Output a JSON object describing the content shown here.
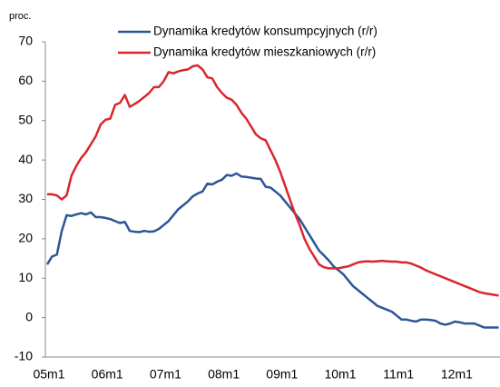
{
  "chart_data": {
    "type": "line",
    "y_label": "proc.",
    "categories": [
      "05m1",
      null,
      null,
      null,
      null,
      null,
      null,
      null,
      null,
      null,
      null,
      null,
      "06m1",
      null,
      null,
      null,
      null,
      null,
      null,
      null,
      null,
      null,
      null,
      null,
      "07m1",
      null,
      null,
      null,
      null,
      null,
      null,
      null,
      null,
      null,
      null,
      null,
      "08m1",
      null,
      null,
      null,
      null,
      null,
      null,
      null,
      null,
      null,
      null,
      null,
      "09m1",
      null,
      null,
      null,
      null,
      null,
      null,
      null,
      null,
      null,
      null,
      null,
      "10m1",
      null,
      null,
      null,
      null,
      null,
      null,
      null,
      null,
      null,
      null,
      null,
      "11m1",
      null,
      null,
      null,
      null,
      null,
      null,
      null,
      null,
      null,
      null,
      null,
      "12m1",
      null,
      null,
      null,
      null,
      null,
      null,
      null,
      null,
      null
    ],
    "series": [
      {
        "name": "Dynamika kredytów konsumpcyjnych (r/r)",
        "color": "#2e5597",
        "values": [
          13.5,
          15.5,
          16,
          22,
          26,
          25.8,
          26.2,
          26.5,
          26.2,
          26.7,
          25.5,
          25.5,
          25.3,
          25,
          24.5,
          24,
          24.3,
          22,
          21.8,
          21.7,
          22,
          21.8,
          21.9,
          22.5,
          23.5,
          24.5,
          26,
          27.5,
          28.5,
          29.5,
          30.8,
          31.5,
          32,
          34,
          33.8,
          34.5,
          35,
          36.2,
          36,
          36.6,
          35.8,
          35.7,
          35.5,
          35.3,
          35.2,
          33.2,
          33,
          32,
          31,
          29.5,
          28,
          26.5,
          25,
          23,
          21,
          19,
          17,
          15.8,
          14.5,
          13,
          12,
          11,
          9.5,
          8,
          7,
          6,
          5,
          4,
          3,
          2.5,
          2,
          1.5,
          0.5,
          -0.5,
          -0.5,
          -0.8,
          -1,
          -0.5,
          -0.5,
          -0.6,
          -0.8,
          -1.5,
          -1.8,
          -1.5,
          -1,
          -1.2,
          -1.5,
          -1.5,
          -1.5,
          -2,
          -2.5,
          -2.5,
          -2.5,
          -2.5
        ]
      },
      {
        "name": "Dynamika kredytów mieszkaniowych (r/r)",
        "color": "#d9262c",
        "values": [
          31.3,
          31.3,
          31,
          30,
          31,
          36,
          38.5,
          40.5,
          42,
          44,
          46,
          49,
          50.2,
          50.5,
          54,
          54.5,
          56.5,
          53.5,
          54.2,
          55,
          56,
          57,
          58.5,
          58.5,
          60,
          62.3,
          62,
          62.5,
          62.8,
          63,
          63.8,
          64,
          63,
          61,
          60.7,
          58.5,
          57,
          55.8,
          55.3,
          54,
          52,
          50.5,
          48.5,
          46.5,
          45.5,
          45,
          42.5,
          40,
          37,
          33.5,
          30,
          26.5,
          23.5,
          20,
          17.5,
          15.5,
          13.5,
          12.8,
          12.5,
          12.5,
          12.5,
          12.8,
          13,
          13.5,
          14,
          14.2,
          14.3,
          14.2,
          14.3,
          14.4,
          14.3,
          14.2,
          14.2,
          14,
          14,
          13.7,
          13.2,
          12.7,
          12,
          11.5,
          11,
          10.5,
          10,
          9.5,
          9,
          8.5,
          8,
          7.5,
          7,
          6.5,
          6.2,
          6,
          5.8,
          5.6
        ]
      }
    ],
    "ylim": [
      -10,
      70
    ],
    "yticks": [
      -10,
      0,
      10,
      20,
      30,
      40,
      50,
      60,
      70
    ],
    "legend": "top"
  }
}
